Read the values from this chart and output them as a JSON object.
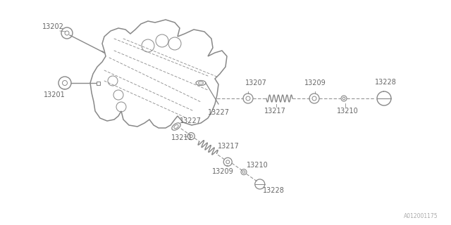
{
  "bg_color": "#ffffff",
  "line_color": "#888888",
  "text_color": "#666666",
  "watermark": "A012001175",
  "lw_main": 1.0,
  "lw_dashed": 0.7,
  "font_size": 7.0
}
